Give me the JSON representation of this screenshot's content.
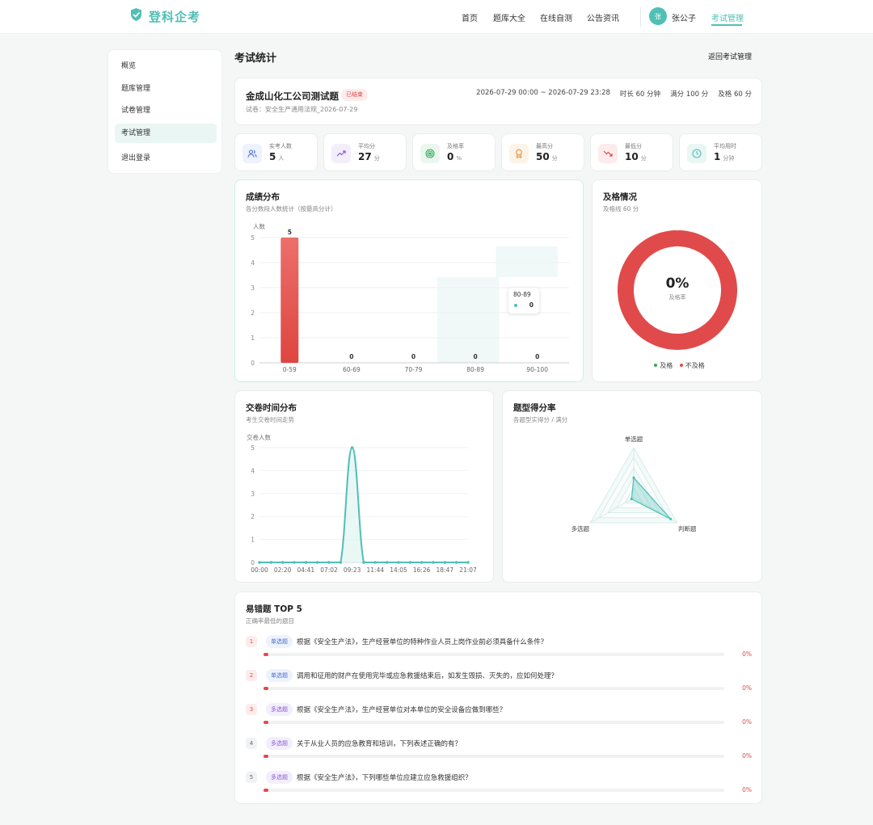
{
  "header": {
    "logo_text": "登科企考",
    "nav": [
      "首页",
      "题库大全",
      "在线自测",
      "公告资讯"
    ],
    "avatar_initial": "张",
    "username": "张公子",
    "active_nav": "考试管理"
  },
  "sidebar": {
    "items": [
      {
        "label": "概览"
      },
      {
        "label": "题库管理"
      },
      {
        "label": "试卷管理"
      },
      {
        "label": "考试管理"
      },
      {
        "label": "退出登录"
      }
    ],
    "active_index": 3
  },
  "page": {
    "title": "考试统计",
    "back_label": "返回考试管理"
  },
  "exam": {
    "title": "金成山化工公司测试题",
    "status": "已结束",
    "paper": "试卷：安全生产通用法规_2026-07-29",
    "time_range": "2026-07-29 00:00 ~ 2026-07-29 23:28",
    "duration": "时长 60 分钟",
    "full_score": "满分 100 分",
    "pass_score": "及格 60 分"
  },
  "stats": [
    {
      "label": "实考人数",
      "value": "5",
      "unit": "人",
      "icon": "users-icon",
      "color": "#4a6fd6",
      "bg": "#eef2fc"
    },
    {
      "label": "平均分",
      "value": "27",
      "unit": "分",
      "icon": "trend-up-icon",
      "color": "#8a5cd6",
      "bg": "#f3eefc"
    },
    {
      "label": "及格率",
      "value": "0",
      "unit": "%",
      "icon": "target-icon",
      "color": "#3aa85a",
      "bg": "#eaf7ee"
    },
    {
      "label": "最高分",
      "value": "50",
      "unit": "分",
      "icon": "medal-icon",
      "color": "#e0903a",
      "bg": "#fdf3e8"
    },
    {
      "label": "最低分",
      "value": "10",
      "unit": "分",
      "icon": "trend-down-icon",
      "color": "#e04a4a",
      "bg": "#fdecec"
    },
    {
      "label": "平均用时",
      "value": "1",
      "unit": "分钟",
      "icon": "clock-icon",
      "color": "#4fc0b5",
      "bg": "#e9f6f4"
    }
  ],
  "score_chart": {
    "title": "成绩分布",
    "subtitle": "各分数段人数统计（按最高分计）",
    "ylabel": "人数",
    "tooltip": {
      "category": "80-89",
      "value": "0"
    }
  },
  "pass_chart": {
    "title": "及格情况",
    "subtitle": "及格线 60 分",
    "center_value": "0%",
    "center_label": "及格率",
    "legend": [
      {
        "label": "及格",
        "color": "#3aa85a"
      },
      {
        "label": "不及格",
        "color": "#e04a4a"
      }
    ]
  },
  "time_chart": {
    "title": "交卷时间分布",
    "subtitle": "考生交卷时间走势",
    "ylabel": "交卷人数"
  },
  "radar_chart": {
    "title": "题型得分率",
    "subtitle": "各题型实得分 / 满分"
  },
  "top_errors": {
    "title": "易错题 TOP 5",
    "subtitle": "正确率最低的题目",
    "items": [
      {
        "num": "1",
        "type": "单选题",
        "text": "根据《安全生产法》，生产经营单位的特种作业人员上岗作业前必须具备什么条件？",
        "pct": "0%"
      },
      {
        "num": "2",
        "type": "单选题",
        "text": "调用和征用的财产在使用完毕或应急救援结束后，如发生毁损、灭失的，应如何处理？",
        "pct": "0%"
      },
      {
        "num": "3",
        "type": "多选题",
        "text": "根据《安全生产法》，生产经营单位对本单位的安全设备应做到哪些？",
        "pct": "0%"
      },
      {
        "num": "4",
        "type": "多选题",
        "text": "关于从业人员的应急教育和培训，下列表述正确的有？",
        "pct": "0%"
      },
      {
        "num": "5",
        "type": "多选题",
        "text": "根据《安全生产法》，下列哪些单位应建立应急救援组织？",
        "pct": "0%"
      }
    ]
  },
  "chart_data": [
    {
      "type": "bar",
      "title": "成绩分布",
      "ylabel": "人数",
      "categories": [
        "0-59",
        "60-69",
        "70-79",
        "80-89",
        "90-100"
      ],
      "values": [
        5,
        0,
        0,
        0,
        0
      ],
      "ylim": [
        0,
        5
      ],
      "yticks": [
        0,
        1,
        2,
        3,
        4,
        5
      ],
      "color": "#e04a4a"
    },
    {
      "type": "pie",
      "title": "及格情况",
      "labels": [
        "及格",
        "不及格"
      ],
      "values": [
        0,
        5
      ],
      "colors": [
        "#3aa85a",
        "#e04a4a"
      ]
    },
    {
      "type": "area",
      "title": "交卷时间分布",
      "ylabel": "交卷人数",
      "x": [
        "00:00",
        "01:09",
        "02:20",
        "03:30",
        "04:41",
        "05:51",
        "07:02",
        "08:12",
        "09:23",
        "10:33",
        "11:44",
        "12:54",
        "14:05",
        "15:15",
        "16:26",
        "17:36",
        "18:47",
        "19:57",
        "21:07"
      ],
      "xticks": [
        "00:00",
        "02:20",
        "04:41",
        "07:02",
        "09:23",
        "11:44",
        "14:05",
        "16:26",
        "18:47",
        "21:07"
      ],
      "values": [
        0,
        0,
        0,
        0,
        0,
        0,
        0,
        0,
        5,
        0,
        0,
        0,
        0,
        0,
        0,
        0,
        0,
        0,
        0
      ],
      "ylim": [
        0,
        5
      ],
      "yticks": [
        0,
        1,
        2,
        3,
        4,
        5
      ],
      "color": "#4fc0b5"
    },
    {
      "type": "radar",
      "title": "题型得分率",
      "axes": [
        "单选题",
        "判断题",
        "多选题"
      ],
      "values": [
        0.4,
        0.85,
        0.05
      ],
      "color": "#4fc0b5"
    }
  ]
}
